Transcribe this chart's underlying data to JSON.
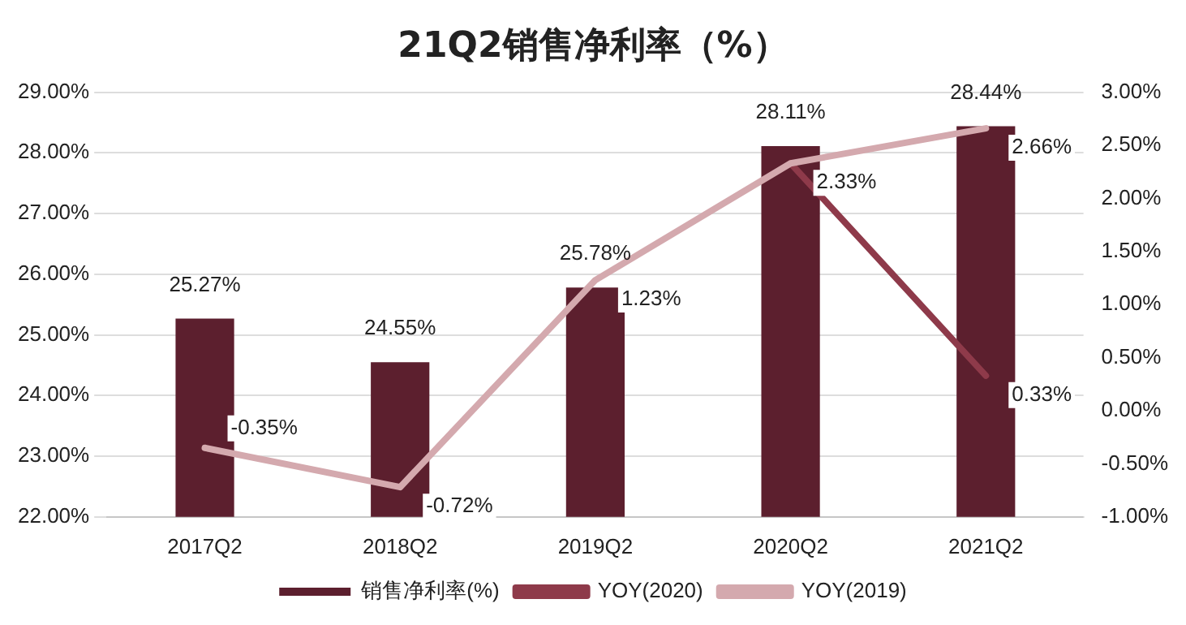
{
  "chart_data": {
    "type": "bar",
    "title": "21Q2销售净利率（%）",
    "categories": [
      "2017Q2",
      "2018Q2",
      "2019Q2",
      "2020Q2",
      "2021Q2"
    ],
    "series": [
      {
        "name": "销售净利率(%)",
        "color": "#5c1f2e",
        "values": [
          25.27,
          24.55,
          25.78,
          28.11,
          28.44
        ],
        "value_labels": [
          "25.27%",
          "24.55%",
          "25.78%",
          "28.11%",
          "28.44%"
        ]
      },
      {
        "name": "YOY(2020)",
        "type": "line",
        "axis": "y2",
        "color": "#8e3a4a",
        "values": [
          null,
          null,
          null,
          2.33,
          0.33
        ],
        "value_labels": [
          null,
          null,
          null,
          null,
          "0.33%"
        ]
      },
      {
        "name": "YOY(2019)",
        "type": "line",
        "axis": "y2",
        "color": "#d4a9ae",
        "values": [
          -0.35,
          -0.72,
          1.23,
          2.33,
          2.66
        ],
        "value_labels": [
          "-0.35%",
          "-0.72%",
          "1.23%",
          "2.33%",
          "2.66%"
        ]
      }
    ],
    "ylim": [
      22,
      29
    ],
    "yticks": [
      {
        "value": 22,
        "label": "22.00%"
      },
      {
        "value": 23,
        "label": "23.00%"
      },
      {
        "value": 24,
        "label": "24.00%"
      },
      {
        "value": 25,
        "label": "25.00%"
      },
      {
        "value": 26,
        "label": "26.00%"
      },
      {
        "value": 27,
        "label": "27.00%"
      },
      {
        "value": 28,
        "label": "28.00%"
      },
      {
        "value": 29,
        "label": "29.00%"
      }
    ],
    "y2lim": [
      -1,
      3
    ],
    "y2ticks": [
      {
        "value": -1,
        "label": "-1.00%"
      },
      {
        "value": -0.5,
        "label": "-0.50%"
      },
      {
        "value": 0,
        "label": "0.00%"
      },
      {
        "value": 0.5,
        "label": "0.50%"
      },
      {
        "value": 1,
        "label": "1.00%"
      },
      {
        "value": 1.5,
        "label": "1.50%"
      },
      {
        "value": 2,
        "label": "2.00%"
      },
      {
        "value": 2.5,
        "label": "2.50%"
      },
      {
        "value": 3,
        "label": "3.00%"
      }
    ],
    "grid": "y",
    "legend": "bottom",
    "marker": "none",
    "line_style": "solid"
  }
}
